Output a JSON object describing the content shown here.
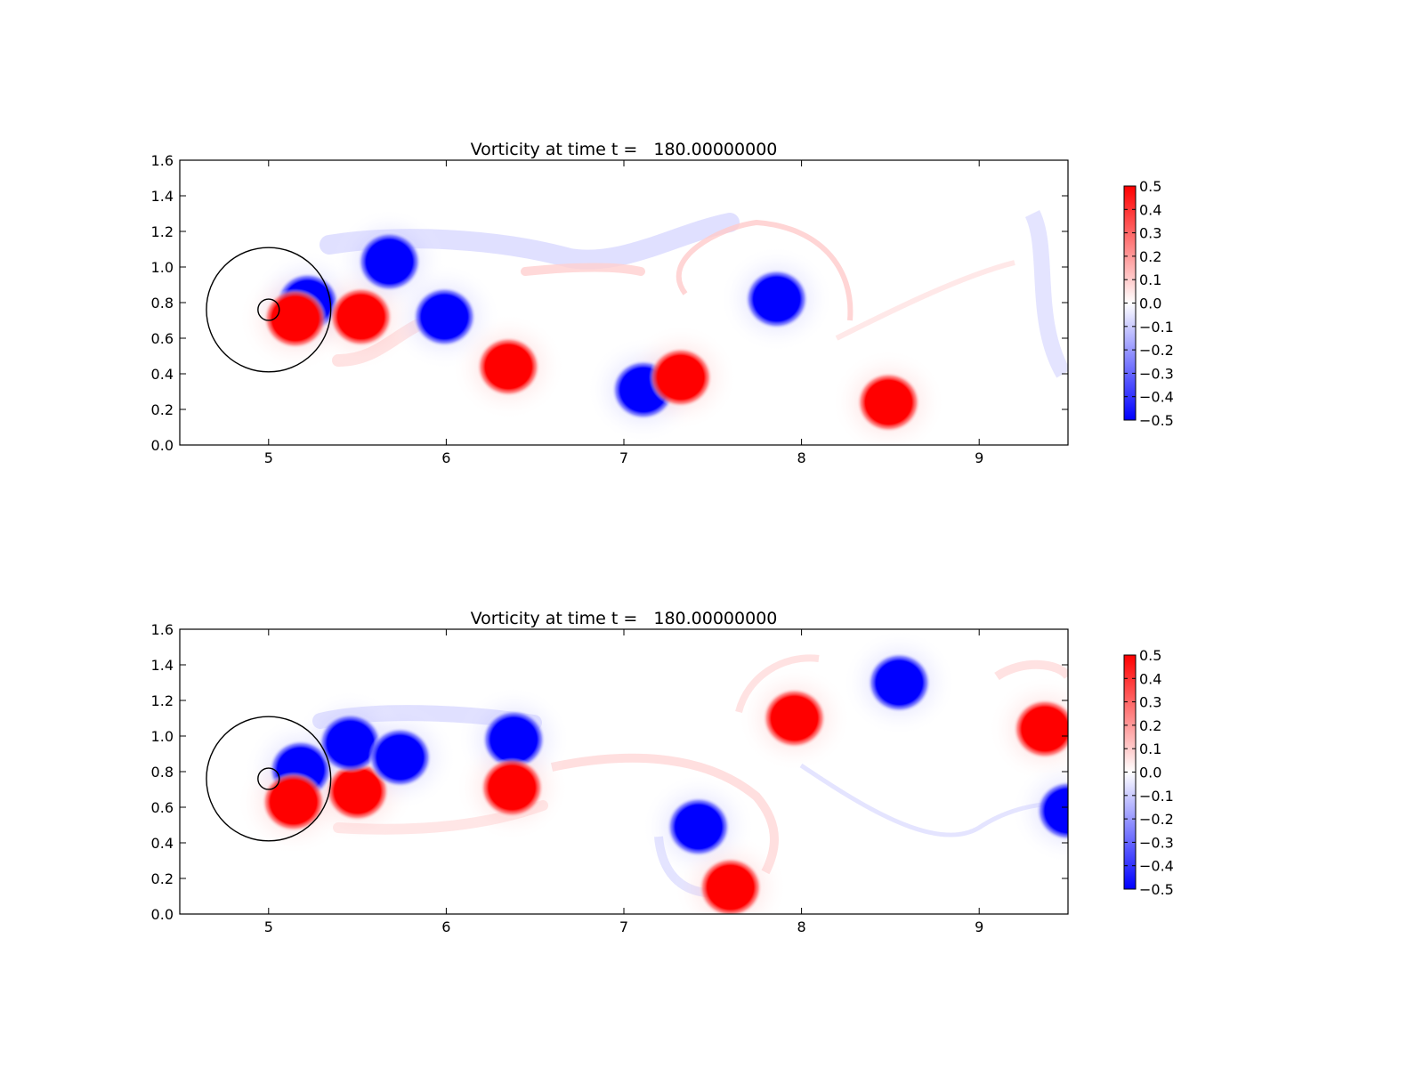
{
  "chart_data": [
    {
      "type": "heatmap",
      "title": "Vorticity at time t =   180.00000000",
      "xlabel": "",
      "ylabel": "",
      "xlim": [
        4.5,
        9.5
      ],
      "ylim": [
        0.0,
        1.6
      ],
      "xticks": [
        "5",
        "6",
        "7",
        "8",
        "9"
      ],
      "yticks": [
        "0.0",
        "0.2",
        "0.4",
        "0.6",
        "0.8",
        "1.0",
        "1.2",
        "1.4",
        "1.6"
      ],
      "grid": false,
      "colorbar": {
        "vmin": -0.5,
        "vmax": 0.5,
        "colormap": "bwr",
        "colors": {
          "negative": "#0000ff",
          "zero": "#ffffff",
          "positive": "#ff0000"
        },
        "ticks": [
          "0.5",
          "0.4",
          "0.3",
          "0.2",
          "0.1",
          "0.0",
          "−0.1",
          "−0.2",
          "−0.3",
          "−0.4",
          "−0.5"
        ]
      },
      "circles": [
        {
          "cx": 5.0,
          "cy": 0.76,
          "r": 0.35
        },
        {
          "cx": 5.0,
          "cy": 0.76,
          "r": 0.06
        }
      ],
      "vortices": [
        {
          "x": 5.22,
          "y": 0.8,
          "w": -0.5
        },
        {
          "x": 5.15,
          "y": 0.71,
          "w": 0.5
        },
        {
          "x": 5.52,
          "y": 0.72,
          "w": 0.5
        },
        {
          "x": 5.68,
          "y": 1.03,
          "w": -0.5
        },
        {
          "x": 5.99,
          "y": 0.72,
          "w": -0.5
        },
        {
          "x": 6.35,
          "y": 0.44,
          "w": 0.5
        },
        {
          "x": 7.11,
          "y": 0.31,
          "w": -0.5
        },
        {
          "x": 7.32,
          "y": 0.38,
          "w": 0.5
        },
        {
          "x": 7.86,
          "y": 0.82,
          "w": -0.5
        },
        {
          "x": 8.49,
          "y": 0.24,
          "w": 0.5
        }
      ]
    },
    {
      "type": "heatmap",
      "title": "Vorticity at time t =   180.00000000",
      "xlabel": "",
      "ylabel": "",
      "xlim": [
        4.5,
        9.5
      ],
      "ylim": [
        0.0,
        1.6
      ],
      "xticks": [
        "5",
        "6",
        "7",
        "8",
        "9"
      ],
      "yticks": [
        "0.0",
        "0.2",
        "0.4",
        "0.6",
        "0.8",
        "1.0",
        "1.2",
        "1.4",
        "1.6"
      ],
      "grid": false,
      "colorbar": {
        "vmin": -0.5,
        "vmax": 0.5,
        "colormap": "bwr",
        "colors": {
          "negative": "#0000ff",
          "zero": "#ffffff",
          "positive": "#ff0000"
        },
        "ticks": [
          "0.5",
          "0.4",
          "0.3",
          "0.2",
          "0.1",
          "0.0",
          "−0.1",
          "−0.2",
          "−0.3",
          "−0.4",
          "−0.5"
        ]
      },
      "circles": [
        {
          "cx": 5.0,
          "cy": 0.76,
          "r": 0.35
        },
        {
          "cx": 5.0,
          "cy": 0.76,
          "r": 0.06
        }
      ],
      "vortices": [
        {
          "x": 5.18,
          "y": 0.81,
          "w": -0.5
        },
        {
          "x": 5.14,
          "y": 0.63,
          "w": 0.5
        },
        {
          "x": 5.5,
          "y": 0.69,
          "w": 0.5
        },
        {
          "x": 5.46,
          "y": 0.96,
          "w": -0.5
        },
        {
          "x": 5.74,
          "y": 0.88,
          "w": -0.5
        },
        {
          "x": 6.38,
          "y": 0.98,
          "w": -0.5
        },
        {
          "x": 6.37,
          "y": 0.71,
          "w": 0.5
        },
        {
          "x": 7.42,
          "y": 0.49,
          "w": -0.5
        },
        {
          "x": 7.6,
          "y": 0.15,
          "w": 0.5
        },
        {
          "x": 7.96,
          "y": 1.1,
          "w": 0.5
        },
        {
          "x": 8.55,
          "y": 1.3,
          "w": -0.5
        },
        {
          "x": 9.37,
          "y": 1.04,
          "w": 0.5
        },
        {
          "x": 9.5,
          "y": 0.58,
          "w": -0.5
        }
      ]
    }
  ]
}
